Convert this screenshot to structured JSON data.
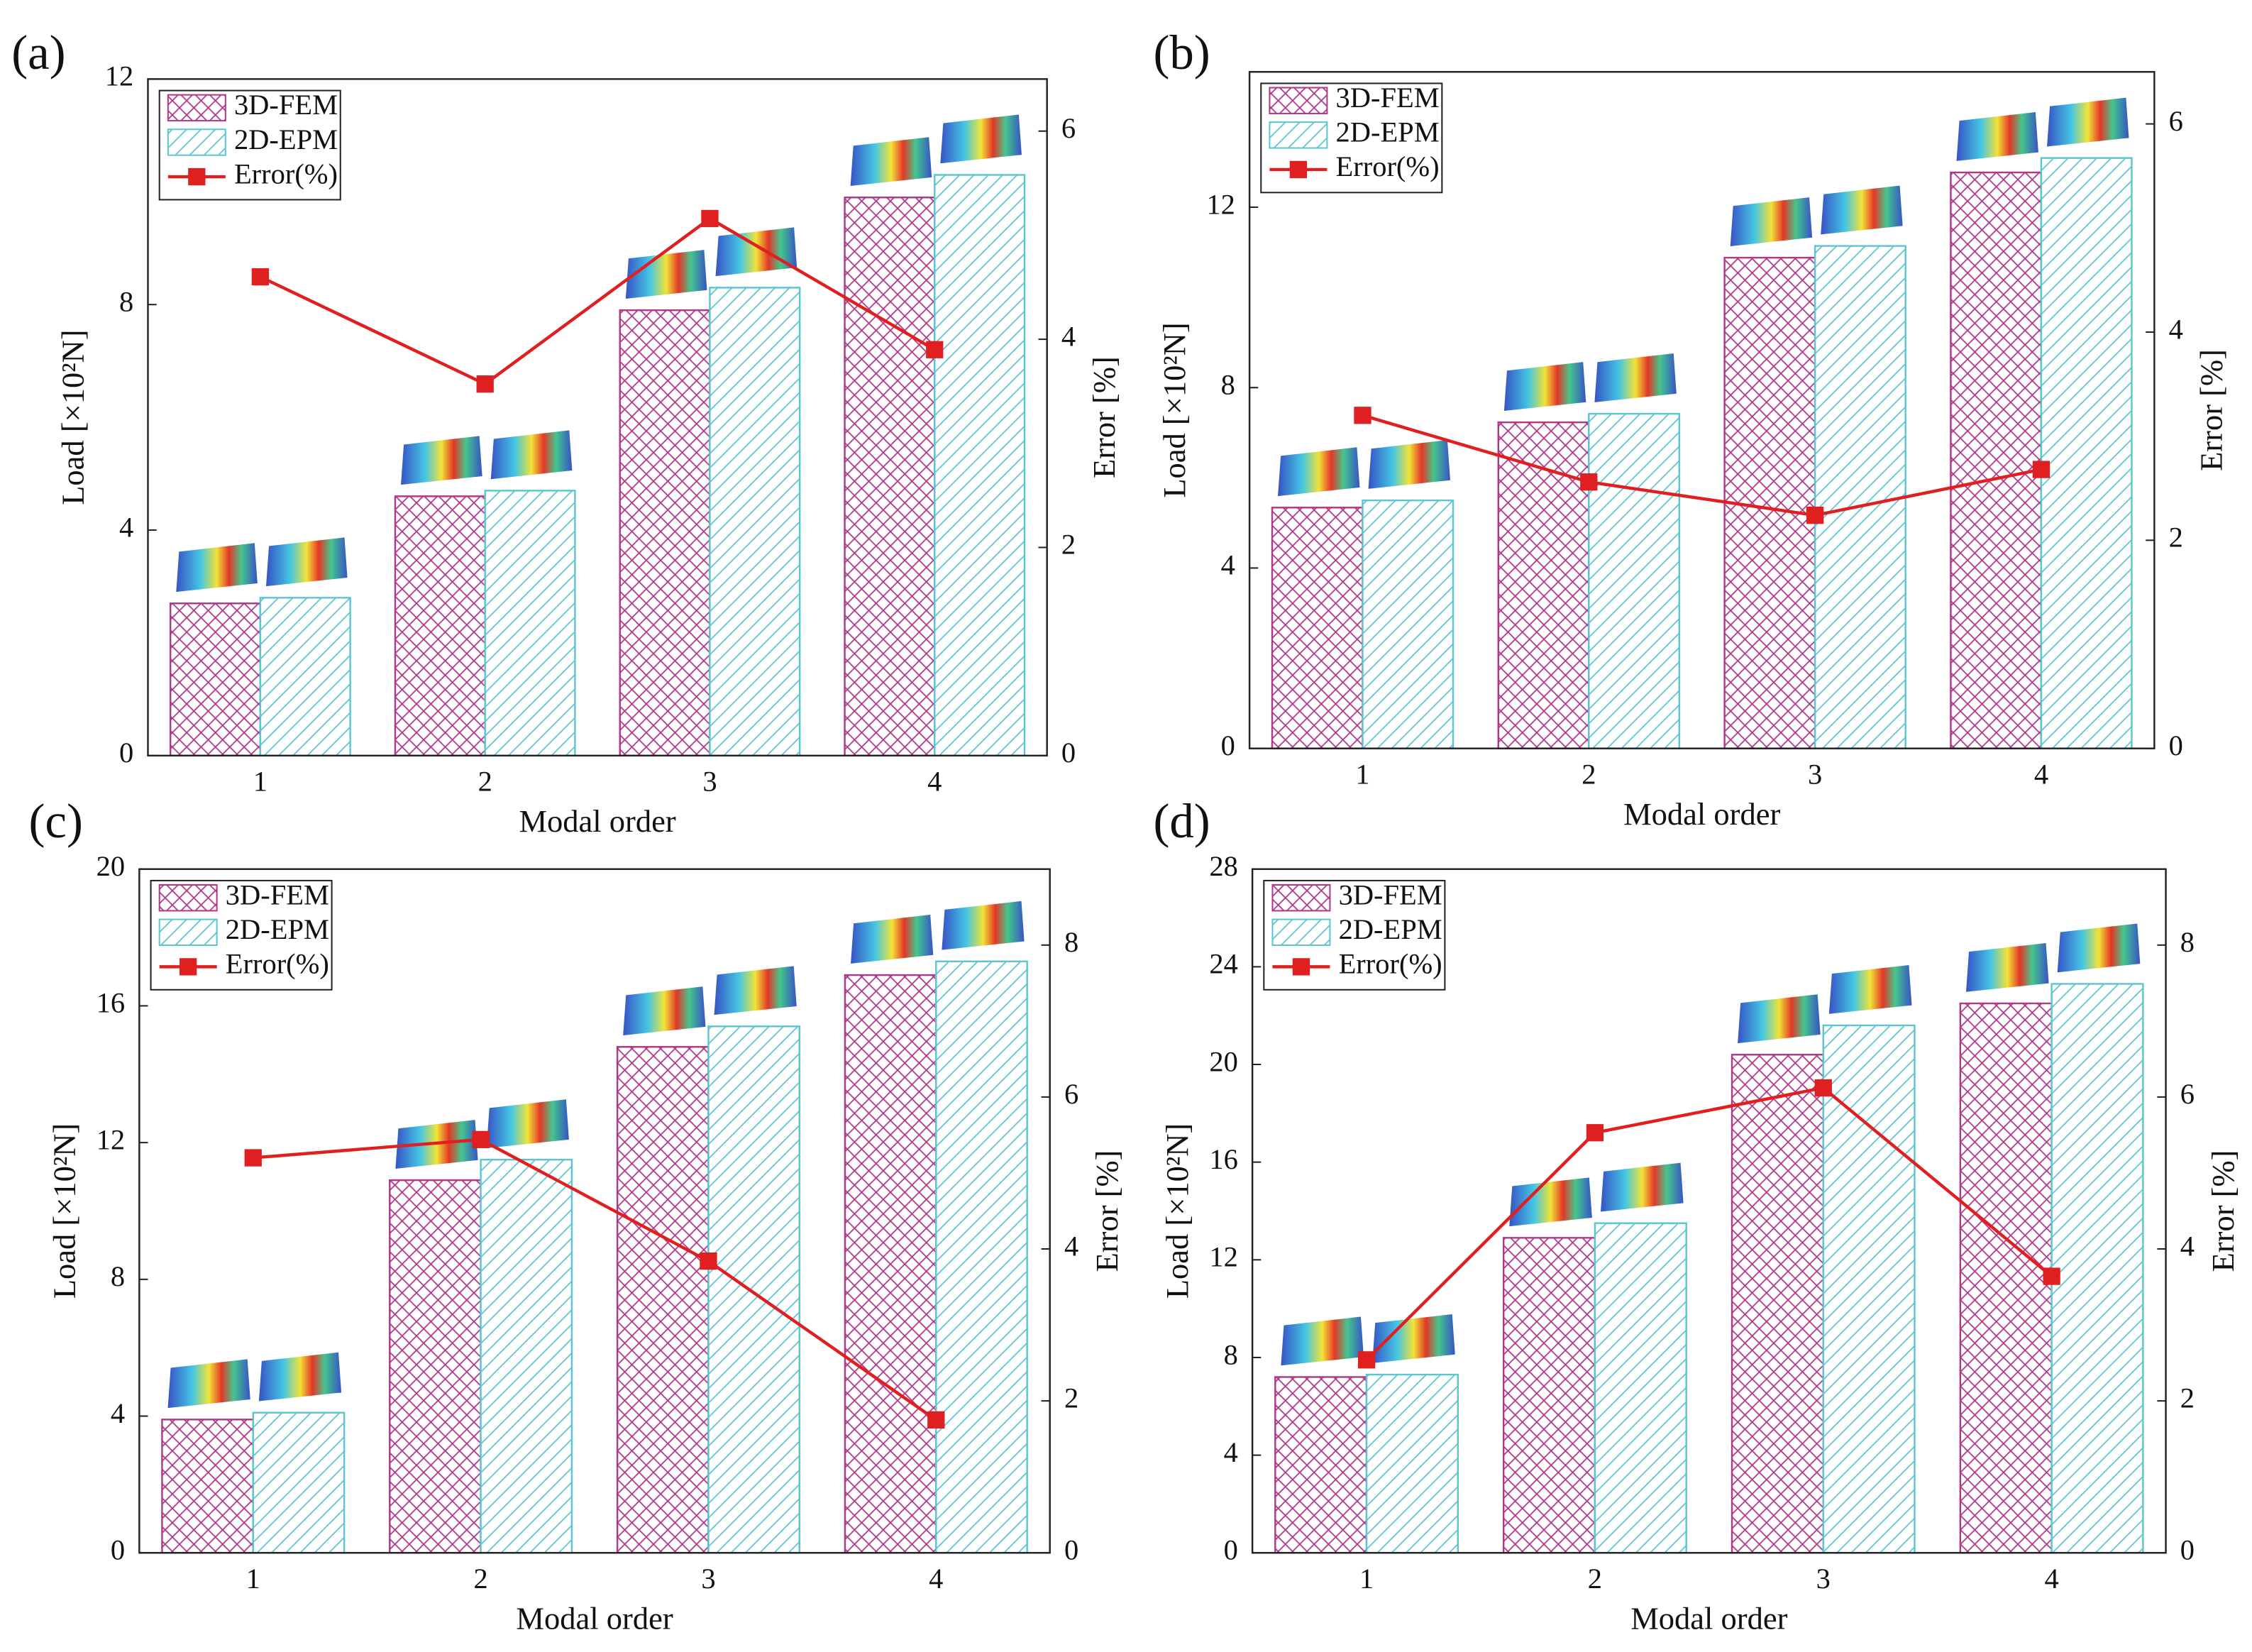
{
  "chart_data": [
    {
      "type": "bar",
      "panel_label": "(a)",
      "categories": [
        "1",
        "2",
        "3",
        "4"
      ],
      "xlabel": "Modal order",
      "ylabel": "Load [×10²N]",
      "y2label": "Error [%]",
      "ylim": [
        0,
        12
      ],
      "yticks": [
        0,
        4,
        8,
        12
      ],
      "y2lim": [
        0,
        6.5
      ],
      "y2ticks": [
        0,
        2,
        4,
        6
      ],
      "legend": "upper left",
      "series": [
        {
          "name": "3D-FEM",
          "color": "#b03888",
          "hatch": "cross",
          "values": [
            2.7,
            4.6,
            7.9,
            9.9
          ]
        },
        {
          "name": "2D-EPM",
          "color": "#5cc6d0",
          "hatch": "diagonal",
          "values": [
            2.8,
            4.7,
            8.3,
            10.3
          ]
        },
        {
          "name": "Error(%)",
          "color": "#e02020",
          "type": "line",
          "axis": "y2",
          "values": [
            4.6,
            3.57,
            5.16,
            3.9
          ]
        }
      ]
    },
    {
      "type": "bar",
      "panel_label": "(b)",
      "categories": [
        "1",
        "2",
        "3",
        "4"
      ],
      "xlabel": "Modal order",
      "ylabel": "Load [×10²N]",
      "y2label": "Error [%]",
      "ylim": [
        0,
        15
      ],
      "yticks": [
        0,
        4,
        8,
        12
      ],
      "y2lim": [
        0,
        6.5
      ],
      "y2ticks": [
        0,
        2,
        4,
        6
      ],
      "legend": "upper left",
      "series": [
        {
          "name": "3D-FEM",
          "color": "#b03888",
          "hatch": "cross",
          "values": [
            5.34,
            7.23,
            10.88,
            12.77
          ]
        },
        {
          "name": "2D-EPM",
          "color": "#5cc6d0",
          "hatch": "diagonal",
          "values": [
            5.5,
            7.42,
            11.14,
            13.09
          ]
        },
        {
          "name": "Error(%)",
          "color": "#e02020",
          "type": "line",
          "axis": "y2",
          "values": [
            3.2,
            2.56,
            2.24,
            2.68
          ]
        }
      ]
    },
    {
      "type": "bar",
      "panel_label": "(c)",
      "categories": [
        "1",
        "2",
        "3",
        "4"
      ],
      "xlabel": "Modal order",
      "ylabel": "Load [×10²N]",
      "y2label": "Error [%]",
      "ylim": [
        0,
        20
      ],
      "yticks": [
        0,
        4,
        8,
        12,
        16,
        20
      ],
      "y2lim": [
        0,
        9
      ],
      "y2ticks": [
        0,
        2,
        4,
        6,
        8
      ],
      "legend": "upper left",
      "series": [
        {
          "name": "3D-FEM",
          "color": "#b03888",
          "hatch": "cross",
          "values": [
            3.9,
            10.9,
            14.8,
            16.9
          ]
        },
        {
          "name": "2D-EPM",
          "color": "#5cc6d0",
          "hatch": "diagonal",
          "values": [
            4.1,
            11.5,
            15.4,
            17.3
          ]
        },
        {
          "name": "Error(%)",
          "color": "#e02020",
          "type": "line",
          "axis": "y2",
          "values": [
            5.2,
            5.44,
            3.84,
            1.75
          ]
        }
      ]
    },
    {
      "type": "bar",
      "panel_label": "(d)",
      "categories": [
        "1",
        "2",
        "3",
        "4"
      ],
      "xlabel": "Modal order",
      "ylabel": "Load [×10²N]",
      "y2label": "Error [%]",
      "ylim": [
        0,
        28
      ],
      "yticks": [
        0,
        4,
        8,
        12,
        16,
        20,
        24,
        28
      ],
      "y2lim": [
        0,
        9
      ],
      "y2ticks": [
        0,
        2,
        4,
        6,
        8
      ],
      "legend": "upper left",
      "series": [
        {
          "name": "3D-FEM",
          "color": "#b03888",
          "hatch": "cross",
          "values": [
            7.2,
            12.9,
            20.4,
            22.5
          ]
        },
        {
          "name": "2D-EPM",
          "color": "#5cc6d0",
          "hatch": "diagonal",
          "values": [
            7.3,
            13.5,
            21.6,
            23.3
          ]
        },
        {
          "name": "Error(%)",
          "color": "#e02020",
          "type": "line",
          "axis": "y2",
          "values": [
            2.54,
            5.53,
            6.12,
            3.64
          ]
        }
      ]
    }
  ]
}
